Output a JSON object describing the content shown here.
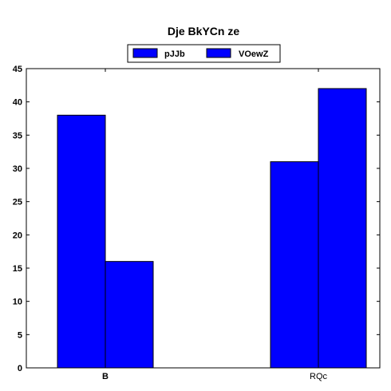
{
  "chart_data": {
    "type": "bar",
    "title": "Dje  BkYCn ze",
    "categories": [
      "B",
      "RQc"
    ],
    "series": [
      {
        "name": "pJJb",
        "values": [
          38,
          16
        ],
        "color": "#0000ff"
      },
      {
        "name": "VOewZ",
        "values": [
          31,
          42
        ],
        "color": "#0000ff"
      }
    ],
    "group_values": [
      [
        38,
        16
      ],
      [
        31,
        42
      ]
    ],
    "ylim": [
      0,
      45
    ],
    "yticks": [
      0,
      5,
      10,
      15,
      20,
      25,
      30,
      35,
      40,
      45
    ],
    "grid": false,
    "legend_position": "top-center"
  }
}
